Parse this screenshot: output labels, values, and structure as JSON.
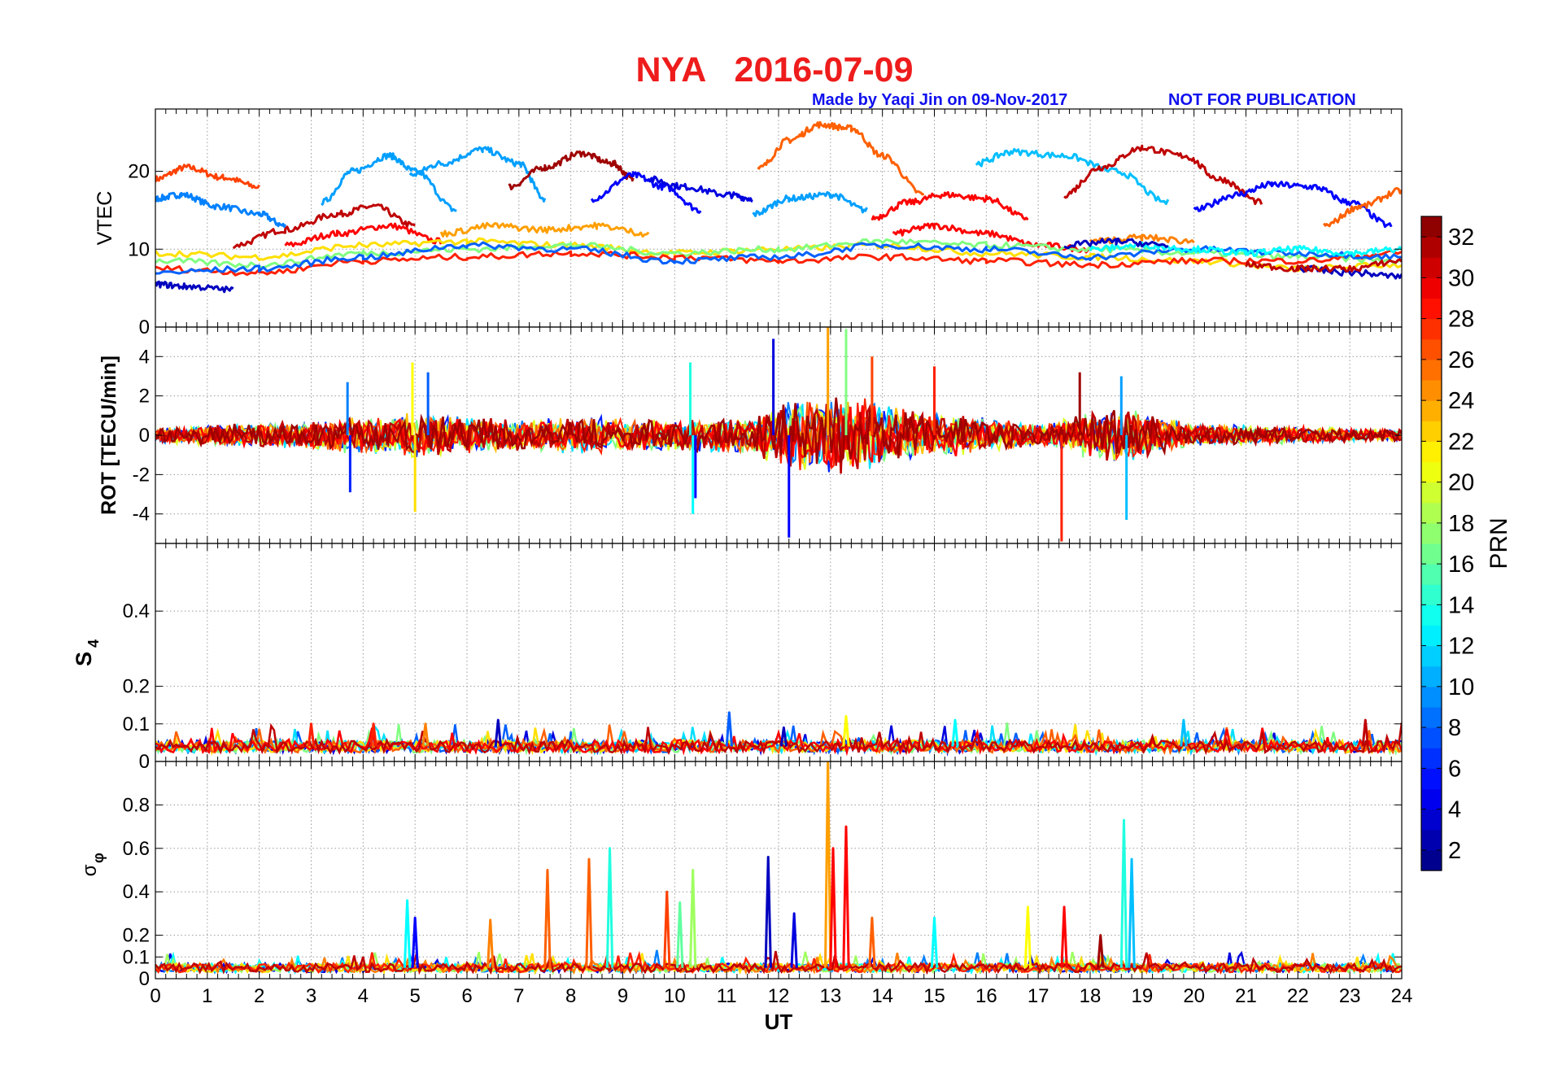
{
  "header": {
    "title": "NYA   2016-07-09",
    "made_by": "Made by Yaqi Jin on 09-Nov-2017",
    "notice": "NOT FOR PUBLICATION",
    "title_color": "#ee1c1c",
    "credit_color": "#1010ee"
  },
  "chart_data": {
    "type": "line",
    "title": "NYA   2016-07-09",
    "xlabel": "UT",
    "xlim": [
      0,
      24
    ],
    "x_ticks": [
      "0",
      "1",
      "2",
      "3",
      "4",
      "5",
      "6",
      "7",
      "8",
      "9",
      "10",
      "11",
      "12",
      "13",
      "14",
      "15",
      "16",
      "17",
      "18",
      "19",
      "20",
      "21",
      "22",
      "23",
      "24"
    ],
    "grid": true,
    "colorbar": {
      "label": "PRN",
      "range": [
        1,
        33
      ],
      "ticks": [
        "2",
        "4",
        "6",
        "8",
        "10",
        "12",
        "14",
        "16",
        "18",
        "20",
        "22",
        "24",
        "26",
        "28",
        "30",
        "32"
      ],
      "colormap": "jet"
    },
    "panels": [
      {
        "id": "vtec",
        "ylabel": "VTEC",
        "ylim": [
          0,
          28
        ],
        "y_ticks": [
          {
            "v": 0,
            "t": "0"
          },
          {
            "v": 10,
            "t": "10"
          },
          {
            "v": 20,
            "t": "20"
          }
        ],
        "series": [
          {
            "prn": 27,
            "x": [
              0,
              0.6,
              1.3,
              2.0
            ],
            "y": [
              19,
              20.5,
              19.2,
              18
            ]
          },
          {
            "prn": 9,
            "x": [
              0,
              0.5,
              1.2,
              2.0,
              2.5
            ],
            "y": [
              16.5,
              17,
              15.5,
              14.5,
              13
            ]
          },
          {
            "prn": 31,
            "x": [
              1.5,
              2.5,
              3.5,
              4.2,
              5.0
            ],
            "y": [
              10.5,
              12.5,
              14.5,
              15.5,
              13
            ]
          },
          {
            "prn": 29,
            "x": [
              2.5,
              3.5,
              4.5,
              5.5
            ],
            "y": [
              10.5,
              12,
              13,
              11
            ]
          },
          {
            "prn": 10,
            "x": [
              3.2,
              3.8,
              4.5,
              5.0,
              5.8
            ],
            "y": [
              16,
              20,
              22,
              20,
              15
            ]
          },
          {
            "prn": 10,
            "x": [
              4.9,
              5.5,
              6.3,
              7.0,
              7.5
            ],
            "y": [
              19.5,
              21,
              22.8,
              21,
              16.5
            ]
          },
          {
            "prn": 32,
            "x": [
              6.8,
              7.5,
              8.2,
              8.8,
              9.2
            ],
            "y": [
              18,
              20.5,
              22.3,
              21,
              19
            ]
          },
          {
            "prn": 5,
            "x": [
              8.4,
              9.2,
              9.8,
              10.5
            ],
            "y": [
              16.5,
              19.5,
              18,
              15
            ]
          },
          {
            "prn": 4,
            "x": [
              9.5,
              10.2,
              11.0,
              11.5
            ],
            "y": [
              19,
              18,
              17,
              16.5
            ]
          },
          {
            "prn": 26,
            "x": [
              11.6,
              12.2,
              12.8,
              13.4,
              14.0,
              14.8
            ],
            "y": [
              20.3,
              24,
              26,
              25.5,
              22,
              17
            ]
          },
          {
            "prn": 10,
            "x": [
              11.5,
              12.2,
              13.0,
              13.7
            ],
            "y": [
              14.5,
              16.5,
              17,
              15
            ]
          },
          {
            "prn": 29,
            "x": [
              13.8,
              14.5,
              15.2,
              16.0,
              16.8
            ],
            "y": [
              14,
              16,
              17,
              16.5,
              14
            ]
          },
          {
            "prn": 29,
            "x": [
              14.2,
              15.0,
              16.0,
              17.0,
              18.0
            ],
            "y": [
              12,
              13,
              12,
              10.5,
              10
            ]
          },
          {
            "prn": 11,
            "x": [
              15.8,
              16.5,
              17.5,
              18.5,
              19.5
            ],
            "y": [
              21,
              22.5,
              22,
              20,
              16
            ]
          },
          {
            "prn": 31,
            "x": [
              17.5,
              18.2,
              19.0,
              19.8,
              20.5,
              21.3
            ],
            "y": [
              17,
              20.5,
              23,
              22,
              19,
              16
            ]
          },
          {
            "prn": 5,
            "x": [
              20.0,
              20.8,
              21.5,
              22.3,
              23.0,
              23.8
            ],
            "y": [
              15,
              17,
              18.3,
              18,
              16,
              13
            ]
          },
          {
            "prn": 26,
            "x": [
              22.5,
              23.2,
              24.0
            ],
            "y": [
              13,
              15.5,
              17.5
            ]
          },
          {
            "prn": 3,
            "x": [
              0,
              0.6,
              1.5
            ],
            "y": [
              5.5,
              5.2,
              4.8
            ]
          },
          {
            "prn": 22,
            "x": [
              0,
              2,
              4,
              6,
              8,
              10,
              12,
              14,
              16,
              18,
              20,
              22,
              24
            ],
            "y": [
              9.5,
              9,
              10.5,
              11,
              10.5,
              9.5,
              10,
              10.5,
              9.5,
              9,
              8.5,
              7.5,
              8
            ]
          },
          {
            "prn": 17,
            "x": [
              0,
              2,
              4,
              6,
              8,
              10,
              12,
              14,
              16,
              18,
              20,
              22,
              24
            ],
            "y": [
              8.5,
              8,
              9.5,
              10,
              10.5,
              9.5,
              10,
              11,
              10.5,
              10,
              9.5,
              9,
              8.5
            ]
          },
          {
            "prn": 28,
            "x": [
              0,
              2,
              4,
              6,
              8,
              10,
              12,
              14,
              16,
              18,
              20,
              22,
              24
            ],
            "y": [
              7.5,
              7,
              8.5,
              9,
              9.5,
              9,
              8.5,
              9,
              8.5,
              8,
              8.5,
              8.5,
              9.5
            ]
          },
          {
            "prn": 8,
            "x": [
              0,
              2,
              4,
              6,
              8,
              10,
              12,
              14,
              16,
              18,
              20,
              22,
              24
            ],
            "y": [
              7,
              7.5,
              9,
              10.5,
              10,
              8.5,
              9,
              10.5,
              10,
              9,
              10,
              9.5,
              9
            ]
          },
          {
            "prn": 24,
            "x": [
              5.5,
              6.5,
              7.5,
              8.5,
              9.5
            ],
            "y": [
              12,
              13,
              12.5,
              13,
              12
            ]
          },
          {
            "prn": 13,
            "x": [
              18,
              19,
              20,
              21,
              22,
              23,
              24
            ],
            "y": [
              10,
              10.5,
              10,
              9.5,
              10,
              9.5,
              10
            ]
          },
          {
            "prn": 25,
            "x": [
              18,
              19,
              20
            ],
            "y": [
              11,
              11.5,
              11
            ]
          },
          {
            "prn": 3,
            "x": [
              17.5,
              18.5,
              19.5
            ],
            "y": [
              10.5,
              11,
              10.5
            ]
          },
          {
            "prn": 3,
            "x": [
              22,
              23,
              24
            ],
            "y": [
              7.5,
              7,
              6.5
            ]
          },
          {
            "prn": 31,
            "x": [
              21,
              22,
              23,
              24
            ],
            "y": [
              8,
              7.5,
              7.5,
              8.5
            ]
          }
        ]
      },
      {
        "id": "rot",
        "ylabel": "ROT [TECU/min]",
        "ylim": [
          -5.5,
          5.5
        ],
        "y_ticks": [
          {
            "v": -4,
            "t": "-4"
          },
          {
            "v": -2,
            "t": "-2"
          },
          {
            "v": 0,
            "t": "0"
          },
          {
            "v": 2,
            "t": "2"
          },
          {
            "v": 4,
            "t": "4"
          }
        ],
        "noise_amp": [
          {
            "x": 0,
            "a": 0.4
          },
          {
            "x": 3,
            "a": 0.8
          },
          {
            "x": 5,
            "a": 1.2
          },
          {
            "x": 7,
            "a": 0.8
          },
          {
            "x": 8.5,
            "a": 1.0
          },
          {
            "x": 10,
            "a": 0.8
          },
          {
            "x": 11.5,
            "a": 1.0
          },
          {
            "x": 12.5,
            "a": 2.2
          },
          {
            "x": 13.5,
            "a": 2.0
          },
          {
            "x": 15,
            "a": 1.2
          },
          {
            "x": 17,
            "a": 0.6
          },
          {
            "x": 18.5,
            "a": 1.6
          },
          {
            "x": 20,
            "a": 0.6
          },
          {
            "x": 24,
            "a": 0.3
          }
        ],
        "spikes": [
          {
            "x": 3.7,
            "y": 2.7,
            "prn": 9
          },
          {
            "x": 3.75,
            "y": -2.9,
            "prn": 6
          },
          {
            "x": 4.95,
            "y": 3.7,
            "prn": 21
          },
          {
            "x": 5.0,
            "y": -3.9,
            "prn": 22
          },
          {
            "x": 5.25,
            "y": 3.2,
            "prn": 8
          },
          {
            "x": 10.3,
            "y": 3.7,
            "prn": 14
          },
          {
            "x": 10.35,
            "y": -4.0,
            "prn": 13
          },
          {
            "x": 10.4,
            "y": -3.2,
            "prn": 5
          },
          {
            "x": 11.9,
            "y": 4.9,
            "prn": 4
          },
          {
            "x": 12.2,
            "y": -5.2,
            "prn": 5
          },
          {
            "x": 12.95,
            "y": 5.5,
            "prn": 24
          },
          {
            "x": 13.3,
            "y": 5.4,
            "prn": 17
          },
          {
            "x": 13.8,
            "y": 4.0,
            "prn": 27
          },
          {
            "x": 15.0,
            "y": 3.5,
            "prn": 28
          },
          {
            "x": 17.45,
            "y": -5.4,
            "prn": 28
          },
          {
            "x": 17.8,
            "y": 3.2,
            "prn": 32
          },
          {
            "x": 18.7,
            "y": -4.3,
            "prn": 11
          },
          {
            "x": 18.6,
            "y": 3.0,
            "prn": 10
          }
        ]
      },
      {
        "id": "s4",
        "ylabel": "S4",
        "ylim": [
          0,
          0.58
        ],
        "y_ticks": [
          {
            "v": 0,
            "t": "0"
          },
          {
            "v": 0.1,
            "t": "0.1"
          },
          {
            "v": 0.2,
            "t": "0.2"
          },
          {
            "v": 0.4,
            "t": "0.4"
          }
        ],
        "base_level": 0.04,
        "spikes": [
          {
            "x": 3.0,
            "y": 0.1,
            "prn": 28
          },
          {
            "x": 4.2,
            "y": 0.1,
            "prn": 28
          },
          {
            "x": 6.6,
            "y": 0.11,
            "prn": 3
          },
          {
            "x": 11.05,
            "y": 0.13,
            "prn": 8
          },
          {
            "x": 12.1,
            "y": 0.09,
            "prn": 3
          },
          {
            "x": 13.3,
            "y": 0.12,
            "prn": 21
          },
          {
            "x": 15.4,
            "y": 0.11,
            "prn": 13
          },
          {
            "x": 19.8,
            "y": 0.11,
            "prn": 11
          },
          {
            "x": 23.3,
            "y": 0.11,
            "prn": 31
          },
          {
            "x": 5.2,
            "y": 0.1,
            "prn": 25
          }
        ]
      },
      {
        "id": "sigma_phi",
        "ylabel": "σφ",
        "ylim": [
          0,
          1.0
        ],
        "y_ticks": [
          {
            "v": 0,
            "t": "0"
          },
          {
            "v": 0.1,
            "t": "0.1"
          },
          {
            "v": 0.2,
            "t": "0.2"
          },
          {
            "v": 0.4,
            "t": "0.4"
          },
          {
            "v": 0.6,
            "t": "0.6"
          },
          {
            "v": 0.8,
            "t": "0.8"
          }
        ],
        "base_level": 0.05,
        "spikes": [
          {
            "x": 4.85,
            "y": 0.36,
            "prn": 13
          },
          {
            "x": 5.0,
            "y": 0.28,
            "prn": 5
          },
          {
            "x": 6.45,
            "y": 0.27,
            "prn": 25
          },
          {
            "x": 7.55,
            "y": 0.5,
            "prn": 26
          },
          {
            "x": 8.35,
            "y": 0.55,
            "prn": 26
          },
          {
            "x": 8.75,
            "y": 0.6,
            "prn": 14
          },
          {
            "x": 9.85,
            "y": 0.4,
            "prn": 27
          },
          {
            "x": 10.1,
            "y": 0.35,
            "prn": 16
          },
          {
            "x": 10.35,
            "y": 0.5,
            "prn": 18
          },
          {
            "x": 11.8,
            "y": 0.56,
            "prn": 3
          },
          {
            "x": 12.3,
            "y": 0.3,
            "prn": 4
          },
          {
            "x": 12.95,
            "y": 1.0,
            "prn": 24
          },
          {
            "x": 13.05,
            "y": 0.6,
            "prn": 29
          },
          {
            "x": 13.3,
            "y": 0.7,
            "prn": 29
          },
          {
            "x": 13.8,
            "y": 0.28,
            "prn": 26
          },
          {
            "x": 15.0,
            "y": 0.28,
            "prn": 13
          },
          {
            "x": 16.8,
            "y": 0.33,
            "prn": 21
          },
          {
            "x": 17.5,
            "y": 0.33,
            "prn": 29
          },
          {
            "x": 18.65,
            "y": 0.73,
            "prn": 14
          },
          {
            "x": 18.8,
            "y": 0.55,
            "prn": 11
          },
          {
            "x": 18.2,
            "y": 0.2,
            "prn": 32
          }
        ]
      }
    ]
  }
}
